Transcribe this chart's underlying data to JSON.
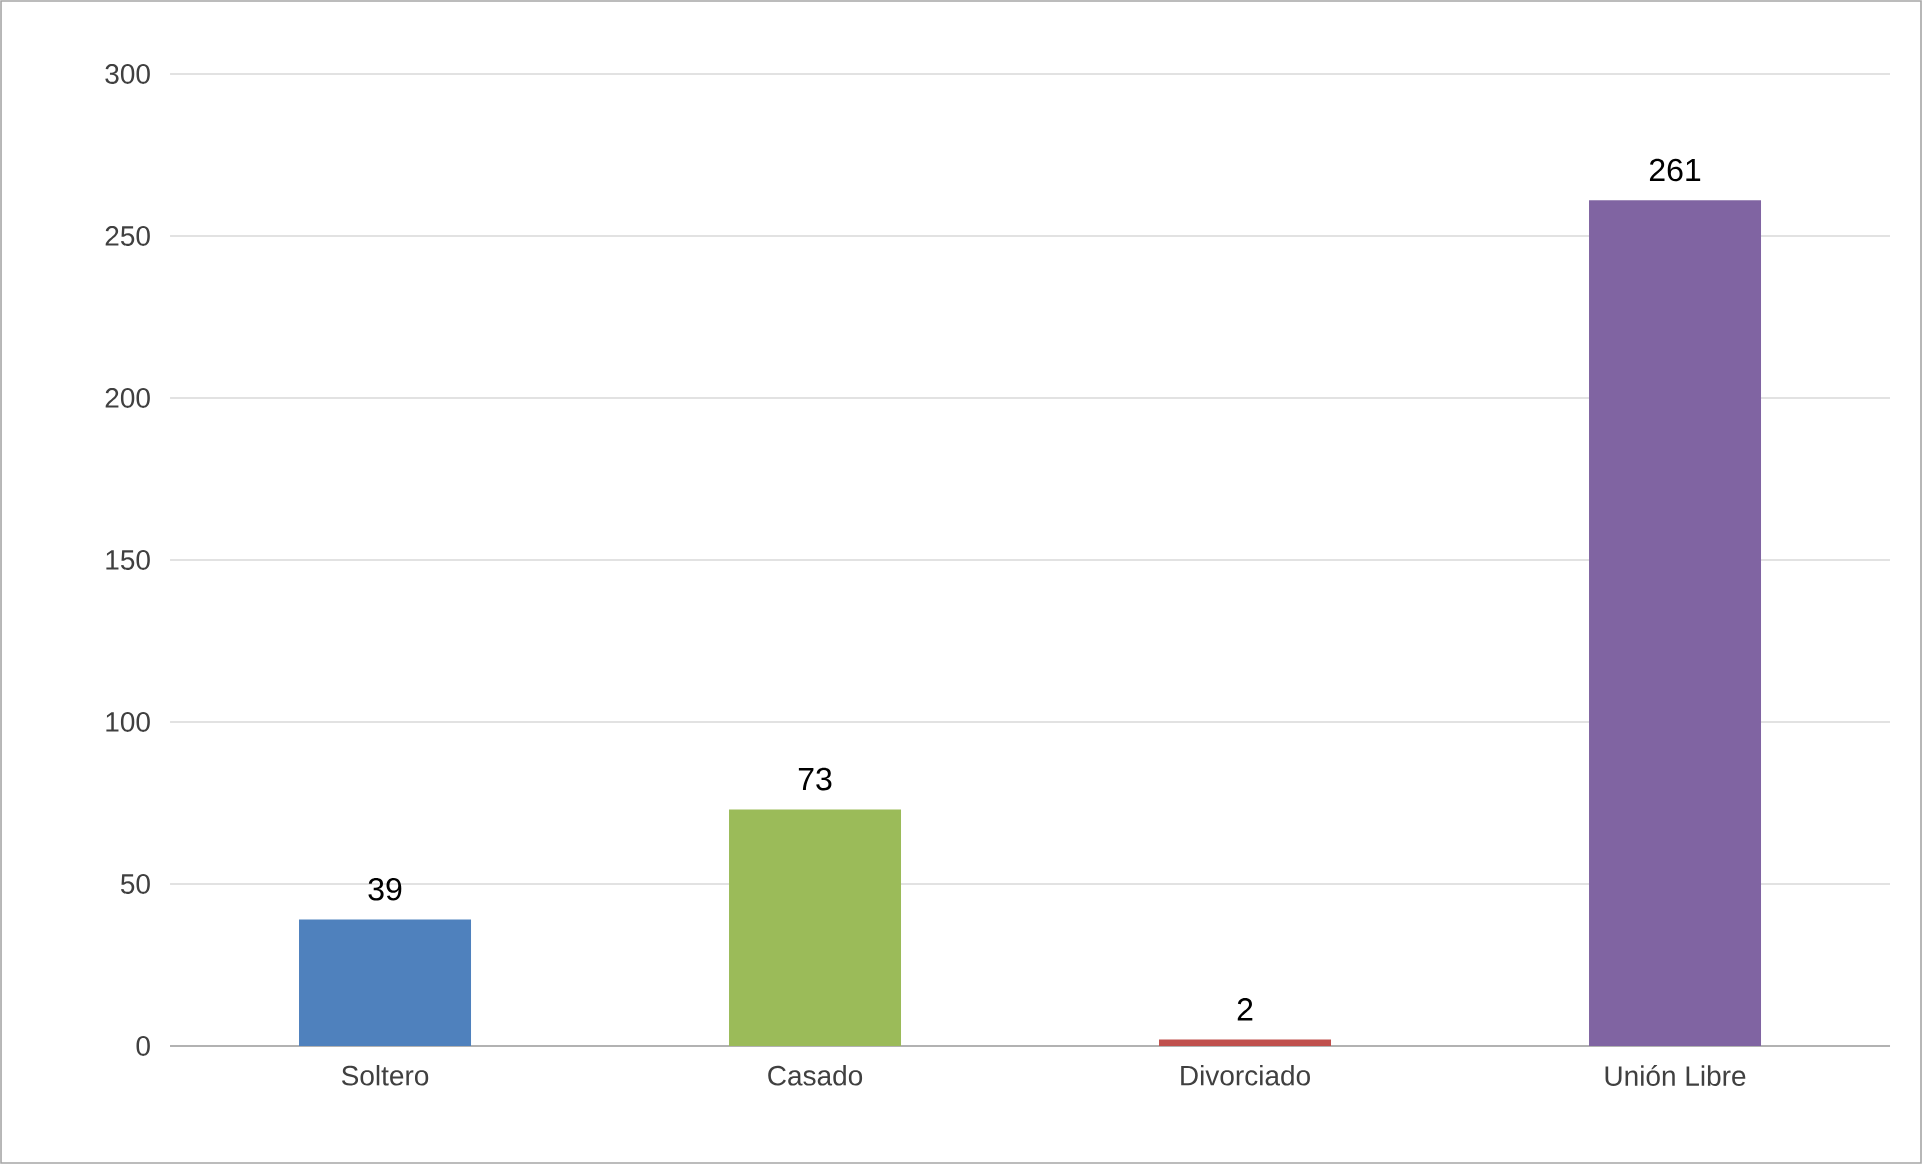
{
  "chart_data": {
    "type": "bar",
    "categories": [
      "Soltero",
      "Casado",
      "Divorciado",
      "Unión Libre"
    ],
    "values": [
      39,
      73,
      2,
      261
    ],
    "colors": [
      "#4f81bd",
      "#9bbb59",
      "#c0504d",
      "#8064a2"
    ],
    "ylim": [
      0,
      300
    ],
    "yticks": [
      0,
      50,
      100,
      150,
      200,
      250,
      300
    ],
    "grid": "y",
    "data_labels": true
  }
}
